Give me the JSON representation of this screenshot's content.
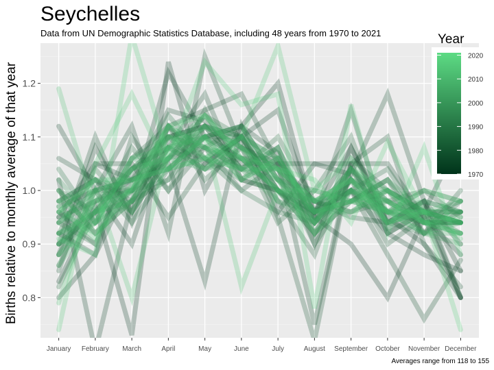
{
  "chart_data": {
    "type": "line",
    "title": "Seychelles",
    "subtitle": "Data from UN Demographic Statistics Database, including 48 years from 1970 to 2021",
    "xlabel": "",
    "ylabel": "Births relative to monthly average of that year",
    "caption": "Averages range from 118 to 155",
    "categories": [
      "January",
      "February",
      "March",
      "April",
      "May",
      "June",
      "July",
      "August",
      "September",
      "October",
      "November",
      "December"
    ],
    "ylim": [
      0.725,
      1.275
    ],
    "yticks": [
      0.8,
      0.9,
      1.0,
      1.1,
      1.2
    ],
    "ytick_labels": [
      "0.8",
      "0.9",
      "1.0",
      "1.1",
      "1.2"
    ],
    "grid": true,
    "legend": {
      "title": "Year",
      "position": "right",
      "ticks": [
        1970,
        1980,
        1990,
        2000,
        2010,
        2020
      ],
      "range": [
        1970,
        2021
      ],
      "color_low": "#00331a",
      "color_high": "#5ddb84"
    },
    "series": [
      {
        "year": 1970,
        "values": [
          0.83,
          0.97,
          0.73,
          1.24,
          1.0,
          1.12,
          1.2,
          0.95,
          0.9,
          0.8,
          0.95,
          0.88
        ]
      },
      {
        "year": 1971,
        "values": [
          0.88,
          1.08,
          0.96,
          1.12,
          1.05,
          1.1,
          1.0,
          0.96,
          1.08,
          0.94,
          0.98,
          0.85
        ]
      },
      {
        "year": 1972,
        "values": [
          1.12,
          1.0,
          0.9,
          1.1,
          1.12,
          1.1,
          1.15,
          0.96,
          1.0,
          0.92,
          0.88,
          0.85
        ]
      },
      {
        "year": 1973,
        "values": [
          0.8,
          0.88,
          1.02,
          1.05,
          0.83,
          1.12,
          0.96,
          1.05,
          1.05,
          0.92,
          0.96,
          1.1
        ]
      },
      {
        "year": 1974,
        "values": [
          1.02,
          0.7,
          0.98,
          1.22,
          1.1,
          1.12,
          1.07,
          0.9,
          1.08,
          0.95,
          0.9,
          0.8
        ]
      },
      {
        "year": 1975,
        "values": [
          0.95,
          1.05,
          1.02,
          1.15,
          1.13,
          1.05,
          1.05,
          0.75,
          1.05,
          1.05,
          0.95,
          0.8
        ]
      },
      {
        "year": 1976,
        "values": [
          0.97,
          1.0,
          1.12,
          0.92,
          1.25,
          1.08,
          1.05,
          1.05,
          1.03,
          1.18,
          0.98,
          0.8
        ]
      },
      {
        "year": 1977,
        "values": [
          0.9,
          1.1,
          0.94,
          1.12,
          1.15,
          1.18,
          1.05,
          0.95,
          1.0,
          0.88,
          0.76,
          0.87
        ]
      },
      {
        "year": 1978,
        "values": [
          1.06,
          1.02,
          0.98,
          1.08,
          1.18,
          1.02,
          1.0,
          0.95,
          1.15,
          0.93,
          0.97,
          0.8
        ]
      },
      {
        "year": 1979,
        "values": [
          0.85,
          1.05,
          1.05,
          0.95,
          1.05,
          1.1,
          0.95,
          0.72,
          1.05,
          1.1,
          0.9,
          0.82
        ]
      },
      {
        "year": 1980,
        "values": [
          0.92,
          0.88,
          1.1,
          1.0,
          1.08,
          1.0,
          1.05,
          0.98,
          0.95,
          0.94,
          0.98,
          0.9
        ]
      },
      {
        "year": 1981,
        "values": [
          0.95,
          0.98,
          1.02,
          1.1,
          1.12,
          1.04,
          1.08,
          0.92,
          1.02,
          0.9,
          0.95,
          0.98
        ]
      },
      {
        "year": 1982,
        "values": [
          0.9,
          0.96,
          1.04,
          1.08,
          1.1,
          1.1,
          0.98,
          0.88,
          1.06,
          1.0,
          0.92,
          0.96
        ]
      },
      {
        "year": 1983,
        "values": [
          1.0,
          0.92,
          0.98,
          1.02,
          1.15,
          1.02,
          1.0,
          0.94,
          1.04,
          0.96,
          1.0,
          0.95
        ]
      },
      {
        "year": 1984,
        "values": [
          0.86,
          1.0,
          1.0,
          1.06,
          1.08,
          1.12,
          1.02,
          0.96,
          0.98,
          1.02,
          0.92,
          1.0
        ]
      },
      {
        "year": 1985,
        "values": [
          0.94,
          0.9,
          1.06,
          1.12,
          1.02,
          1.08,
          0.94,
          1.0,
          1.1,
          0.92,
          0.96,
          0.96
        ]
      },
      {
        "year": 1986,
        "values": [
          0.98,
          1.02,
          0.94,
          1.04,
          1.1,
          1.06,
          1.04,
          0.9,
          1.0,
          1.04,
          0.94,
          0.94
        ]
      },
      {
        "year": 1987,
        "values": [
          0.82,
          0.96,
          1.08,
          1.0,
          1.12,
          1.04,
          1.1,
          0.98,
          0.96,
          0.98,
          1.0,
          0.98
        ]
      },
      {
        "year": 1988,
        "values": [
          1.04,
          0.94,
          1.0,
          1.14,
          1.06,
          1.0,
          0.96,
          0.94,
          1.02,
          0.96,
          0.98,
          0.96
        ]
      },
      {
        "year": 1989,
        "values": [
          0.92,
          1.04,
          0.96,
          1.06,
          1.14,
          1.1,
          1.0,
          0.92,
          0.98,
          1.0,
          0.96,
          0.92
        ]
      },
      {
        "year": 1990,
        "values": [
          0.96,
          0.9,
          1.04,
          1.1,
          1.04,
          1.06,
          1.06,
          0.96,
          1.04,
          0.94,
          0.92,
          0.98
        ]
      },
      {
        "year": 1991,
        "values": [
          0.88,
          0.98,
          1.0,
          1.02,
          1.1,
          1.12,
          1.02,
          1.0,
          0.98,
          1.02,
          0.94,
          0.94
        ]
      },
      {
        "year": 1992,
        "values": [
          1.0,
          0.96,
          0.98,
          1.08,
          1.06,
          1.02,
          1.08,
          0.94,
          1.0,
          0.98,
          0.96,
          0.94
        ]
      },
      {
        "year": 1993,
        "values": [
          0.94,
          1.0,
          1.02,
          1.04,
          1.12,
          1.08,
          0.98,
          0.96,
          1.02,
          0.96,
          0.94,
          0.94
        ]
      },
      {
        "year": 1994,
        "values": [
          0.9,
          0.94,
          1.06,
          1.1,
          1.08,
          1.04,
          1.04,
          0.98,
          0.96,
          1.0,
          0.96,
          0.94
        ]
      },
      {
        "year": 1995,
        "values": [
          0.98,
          1.02,
          0.96,
          1.06,
          1.1,
          1.06,
          1.0,
          0.92,
          1.04,
          0.98,
          0.94,
          0.94
        ]
      },
      {
        "year": 1996,
        "values": [
          0.92,
          0.96,
          1.04,
          1.08,
          1.04,
          1.1,
          1.06,
          0.96,
          1.0,
          0.94,
          0.96,
          0.94
        ]
      },
      {
        "year": 1997,
        "values": [
          0.96,
          0.92,
          1.0,
          1.12,
          1.08,
          1.04,
          1.02,
          0.94,
          1.02,
          1.0,
          0.96,
          0.94
        ]
      },
      {
        "year": 1998,
        "values": [
          0.88,
          1.0,
          1.02,
          1.06,
          1.12,
          1.08,
          1.04,
          0.96,
          0.98,
          0.96,
          0.94,
          0.96
        ]
      },
      {
        "year": 1999,
        "values": [
          1.02,
          0.94,
          0.98,
          1.04,
          1.06,
          1.1,
          1.0,
          0.98,
          1.0,
          0.96,
          0.96,
          0.96
        ]
      },
      {
        "year": 2000,
        "values": [
          0.94,
          0.98,
          1.04,
          1.1,
          1.1,
          1.02,
          1.06,
          0.94,
          1.02,
          0.98,
          0.92,
          0.9
        ]
      },
      {
        "year": 2001,
        "values": [
          0.9,
          0.96,
          1.0,
          1.06,
          1.14,
          1.06,
          1.0,
          0.96,
          1.04,
          0.94,
          0.98,
          0.96
        ]
      },
      {
        "year": 2002,
        "values": [
          0.98,
          1.0,
          0.96,
          1.08,
          1.04,
          1.08,
          1.04,
          0.92,
          0.98,
          1.02,
          0.96,
          0.94
        ]
      },
      {
        "year": 2003,
        "values": [
          0.92,
          0.94,
          1.06,
          1.04,
          1.1,
          1.12,
          1.02,
          0.98,
          1.0,
          0.96,
          0.92,
          0.94
        ]
      },
      {
        "year": 2004,
        "values": [
          0.96,
          1.02,
          1.0,
          1.12,
          1.06,
          1.04,
          0.98,
          0.94,
          1.04,
          0.98,
          0.94,
          0.92
        ]
      },
      {
        "year": 2005,
        "values": [
          0.86,
          0.96,
          1.04,
          1.06,
          1.12,
          1.1,
          1.06,
          0.96,
          0.96,
          1.0,
          0.94,
          0.94
        ]
      },
      {
        "year": 2006,
        "values": [
          1.0,
          0.92,
          0.98,
          1.1,
          1.08,
          1.06,
          1.0,
          0.98,
          1.02,
          0.94,
          0.96,
          0.96
        ]
      },
      {
        "year": 2007,
        "values": [
          0.94,
          1.0,
          1.02,
          1.04,
          1.1,
          1.04,
          1.08,
          0.94,
          1.0,
          0.98,
          0.94,
          0.92
        ]
      },
      {
        "year": 2008,
        "values": [
          0.9,
          0.98,
          1.0,
          1.08,
          1.14,
          1.08,
          1.02,
          0.96,
          0.98,
          0.96,
          0.96,
          0.94
        ]
      },
      {
        "year": 2009,
        "values": [
          0.98,
          0.94,
          1.04,
          1.06,
          1.04,
          1.1,
          1.04,
          0.98,
          1.02,
          0.96,
          0.92,
          0.92
        ]
      },
      {
        "year": 2010,
        "values": [
          0.92,
          0.96,
          0.98,
          1.12,
          1.08,
          1.06,
          1.0,
          0.94,
          1.04,
          1.0,
          0.96,
          0.94
        ]
      },
      {
        "year": 2011,
        "values": [
          0.96,
          1.02,
          1.02,
          1.04,
          1.1,
          1.02,
          1.06,
          0.96,
          0.98,
          0.98,
          0.94,
          0.92
        ]
      },
      {
        "year": 2012,
        "values": [
          0.88,
          0.94,
          1.06,
          1.08,
          1.12,
          1.08,
          1.02,
          0.92,
          1.0,
          0.96,
          0.96,
          0.98
        ]
      },
      {
        "year": 2013,
        "values": [
          1.19,
          0.96,
          1.0,
          1.1,
          1.06,
          1.04,
          1.04,
          0.98,
          1.02,
          0.94,
          0.96,
          0.91
        ]
      },
      {
        "year": 2014,
        "values": [
          0.79,
          1.0,
          0.8,
          1.08,
          1.1,
          0.82,
          1.0,
          1.0,
          0.98,
          1.0,
          0.94,
          0.95
        ]
      },
      {
        "year": 2015,
        "values": [
          0.74,
          1.05,
          1.18,
          1.04,
          1.06,
          1.1,
          1.27,
          1.0,
          1.06,
          0.96,
          1.0,
          0.98
        ]
      },
      {
        "year": 2016,
        "values": [
          0.91,
          0.88,
          1.29,
          1.06,
          1.24,
          1.16,
          1.18,
          0.78,
          1.16,
          0.92,
          1.08,
          0.88
        ]
      },
      {
        "year": 2017,
        "values": [
          0.97,
          0.91,
          1.01,
          1.12,
          1.14,
          1.06,
          1.04,
          1.02,
          0.94,
          1.09,
          0.96,
          0.74
        ]
      }
    ]
  }
}
